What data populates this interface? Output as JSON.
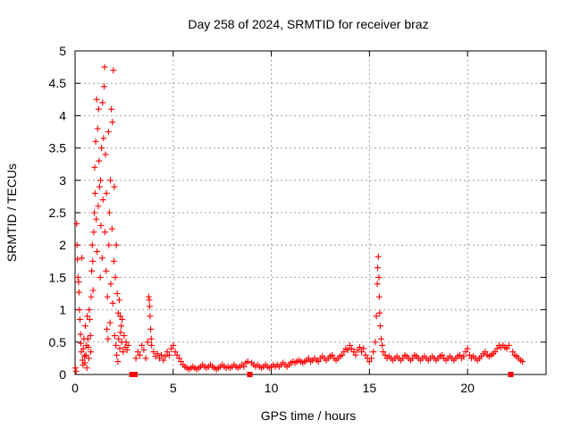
{
  "chart_data": {
    "type": "scatter",
    "title": "Day 258 of 2024, SRMTID for receiver braz",
    "xlabel": "GPS time / hours",
    "ylabel": "SRMTID / TECUs",
    "xlim": [
      0,
      24
    ],
    "ylim": [
      0,
      5
    ],
    "xticks": [
      0,
      5,
      10,
      15,
      20
    ],
    "xtick_labels": [
      "0",
      "5",
      "10",
      "15",
      "20"
    ],
    "yticks": [
      0,
      0.5,
      1,
      1.5,
      2,
      2.5,
      3,
      3.5,
      4,
      4.5,
      5
    ],
    "ytick_labels": [
      "0",
      "0.5",
      "1",
      "1.5",
      "2",
      "2.5",
      "3",
      "3.5",
      "4",
      "4.5",
      "5"
    ],
    "grid": true,
    "marker": "+",
    "color": "#ff0000",
    "series": [
      {
        "name": "SRMTID",
        "points": [
          [
            0.02,
            0.1
          ],
          [
            0.05,
            0.05
          ],
          [
            0.08,
            2.33
          ],
          [
            0.1,
            2.0
          ],
          [
            0.12,
            1.78
          ],
          [
            0.15,
            1.5
          ],
          [
            0.18,
            1.43
          ],
          [
            0.2,
            1.27
          ],
          [
            0.22,
            1.0
          ],
          [
            0.25,
            0.85
          ],
          [
            0.28,
            0.62
          ],
          [
            0.3,
            0.48
          ],
          [
            0.32,
            0.35
          ],
          [
            0.35,
            1.8
          ],
          [
            0.38,
            0.22
          ],
          [
            0.4,
            0.15
          ],
          [
            0.42,
            0.4
          ],
          [
            0.45,
            0.55
          ],
          [
            0.48,
            0.28
          ],
          [
            0.5,
            0.18
          ],
          [
            0.52,
            0.75
          ],
          [
            0.55,
            0.3
          ],
          [
            0.58,
            0.45
          ],
          [
            0.6,
            0.1
          ],
          [
            0.62,
            0.9
          ],
          [
            0.65,
            0.55
          ],
          [
            0.68,
            0.42
          ],
          [
            0.7,
            0.25
          ],
          [
            0.72,
            1.0
          ],
          [
            0.75,
            0.85
          ],
          [
            0.78,
            0.6
          ],
          [
            0.8,
            0.35
          ],
          [
            0.82,
            1.2
          ],
          [
            0.85,
            1.6
          ],
          [
            0.88,
            2.0
          ],
          [
            0.9,
            1.75
          ],
          [
            0.92,
            1.3
          ],
          [
            0.95,
            2.2
          ],
          [
            0.98,
            2.5
          ],
          [
            1.0,
            3.2
          ],
          [
            1.02,
            2.8
          ],
          [
            1.05,
            3.6
          ],
          [
            1.08,
            2.4
          ],
          [
            1.1,
            4.25
          ],
          [
            1.12,
            1.9
          ],
          [
            1.15,
            3.8
          ],
          [
            1.18,
            2.6
          ],
          [
            1.2,
            4.1
          ],
          [
            1.22,
            3.3
          ],
          [
            1.25,
            2.9
          ],
          [
            1.28,
            1.5
          ],
          [
            1.3,
            3.0
          ],
          [
            1.32,
            2.3
          ],
          [
            1.35,
            3.5
          ],
          [
            1.38,
            1.8
          ],
          [
            1.4,
            4.2
          ],
          [
            1.42,
            2.7
          ],
          [
            1.45,
            3.65
          ],
          [
            1.48,
            4.45
          ],
          [
            1.5,
            4.75
          ],
          [
            1.52,
            2.2
          ],
          [
            1.55,
            3.4
          ],
          [
            1.58,
            1.6
          ],
          [
            1.6,
            2.8
          ],
          [
            1.62,
            0.7
          ],
          [
            1.65,
            1.2
          ],
          [
            1.68,
            0.55
          ],
          [
            1.7,
            3.75
          ],
          [
            1.72,
            2.0
          ],
          [
            1.75,
            2.5
          ],
          [
            1.78,
            0.8
          ],
          [
            1.8,
            3.0
          ],
          [
            1.82,
            1.4
          ],
          [
            1.85,
            4.1
          ],
          [
            1.88,
            2.25
          ],
          [
            1.9,
            3.9
          ],
          [
            1.92,
            1.1
          ],
          [
            1.95,
            4.7
          ],
          [
            1.98,
            1.75
          ],
          [
            2.0,
            2.9
          ],
          [
            2.02,
            0.6
          ],
          [
            2.05,
            1.5
          ],
          [
            2.08,
            0.45
          ],
          [
            2.1,
            2.0
          ],
          [
            2.12,
            0.3
          ],
          [
            2.15,
            1.25
          ],
          [
            2.18,
            0.2
          ],
          [
            2.2,
            0.95
          ],
          [
            2.22,
            0.55
          ],
          [
            2.25,
            1.15
          ],
          [
            2.28,
            0.4
          ],
          [
            2.3,
            0.9
          ],
          [
            2.32,
            0.65
          ],
          [
            2.35,
            0.75
          ],
          [
            2.38,
            0.5
          ],
          [
            2.4,
            0.85
          ],
          [
            2.45,
            0.35
          ],
          [
            2.5,
            0.6
          ],
          [
            2.55,
            0.42
          ],
          [
            2.6,
            0.5
          ],
          [
            2.65,
            0.38
          ],
          [
            2.7,
            0.45
          ],
          [
            2.9,
            0.0
          ],
          [
            3.05,
            0.0
          ],
          [
            3.1,
            0.25
          ],
          [
            3.2,
            0.35
          ],
          [
            3.3,
            0.3
          ],
          [
            3.4,
            0.45
          ],
          [
            3.5,
            0.38
          ],
          [
            3.6,
            0.25
          ],
          [
            3.7,
            0.5
          ],
          [
            3.75,
            1.2
          ],
          [
            3.78,
            1.15
          ],
          [
            3.8,
            1.05
          ],
          [
            3.82,
            0.9
          ],
          [
            3.85,
            0.7
          ],
          [
            3.88,
            0.55
          ],
          [
            3.9,
            0.45
          ],
          [
            4.0,
            0.35
          ],
          [
            4.1,
            0.28
          ],
          [
            4.2,
            0.32
          ],
          [
            4.3,
            0.25
          ],
          [
            4.4,
            0.3
          ],
          [
            4.5,
            0.22
          ],
          [
            4.6,
            0.28
          ],
          [
            4.7,
            0.35
          ],
          [
            4.8,
            0.3
          ],
          [
            4.9,
            0.4
          ],
          [
            5.0,
            0.45
          ],
          [
            5.1,
            0.35
          ],
          [
            5.2,
            0.3
          ],
          [
            5.3,
            0.25
          ],
          [
            5.4,
            0.2
          ],
          [
            5.5,
            0.15
          ],
          [
            5.6,
            0.12
          ],
          [
            5.7,
            0.1
          ],
          [
            5.8,
            0.08
          ],
          [
            5.9,
            0.1
          ],
          [
            6.0,
            0.12
          ],
          [
            6.1,
            0.1
          ],
          [
            6.2,
            0.08
          ],
          [
            6.3,
            0.1
          ],
          [
            6.4,
            0.12
          ],
          [
            6.5,
            0.15
          ],
          [
            6.6,
            0.12
          ],
          [
            6.7,
            0.1
          ],
          [
            6.8,
            0.12
          ],
          [
            6.9,
            0.15
          ],
          [
            7.0,
            0.12
          ],
          [
            7.1,
            0.1
          ],
          [
            7.2,
            0.08
          ],
          [
            7.3,
            0.1
          ],
          [
            7.4,
            0.12
          ],
          [
            7.5,
            0.15
          ],
          [
            7.6,
            0.12
          ],
          [
            7.7,
            0.1
          ],
          [
            7.8,
            0.12
          ],
          [
            7.9,
            0.1
          ],
          [
            8.0,
            0.12
          ],
          [
            8.1,
            0.15
          ],
          [
            8.2,
            0.12
          ],
          [
            8.3,
            0.1
          ],
          [
            8.4,
            0.12
          ],
          [
            8.5,
            0.15
          ],
          [
            8.6,
            0.12
          ],
          [
            8.7,
            0.18
          ],
          [
            8.8,
            0.2
          ],
          [
            8.9,
            0.0
          ],
          [
            9.0,
            0.18
          ],
          [
            9.1,
            0.15
          ],
          [
            9.2,
            0.12
          ],
          [
            9.3,
            0.15
          ],
          [
            9.4,
            0.12
          ],
          [
            9.5,
            0.1
          ],
          [
            9.6,
            0.12
          ],
          [
            9.7,
            0.15
          ],
          [
            9.8,
            0.12
          ],
          [
            9.9,
            0.1
          ],
          [
            10.0,
            0.12
          ],
          [
            10.1,
            0.15
          ],
          [
            10.2,
            0.12
          ],
          [
            10.3,
            0.15
          ],
          [
            10.4,
            0.12
          ],
          [
            10.5,
            0.15
          ],
          [
            10.6,
            0.18
          ],
          [
            10.7,
            0.15
          ],
          [
            10.8,
            0.12
          ],
          [
            10.9,
            0.15
          ],
          [
            11.0,
            0.18
          ],
          [
            11.1,
            0.2
          ],
          [
            11.2,
            0.18
          ],
          [
            11.3,
            0.2
          ],
          [
            11.4,
            0.22
          ],
          [
            11.5,
            0.2
          ],
          [
            11.6,
            0.18
          ],
          [
            11.7,
            0.2
          ],
          [
            11.8,
            0.22
          ],
          [
            11.9,
            0.25
          ],
          [
            12.0,
            0.2
          ],
          [
            12.1,
            0.22
          ],
          [
            12.2,
            0.25
          ],
          [
            12.3,
            0.22
          ],
          [
            12.4,
            0.2
          ],
          [
            12.5,
            0.25
          ],
          [
            12.6,
            0.28
          ],
          [
            12.7,
            0.25
          ],
          [
            12.8,
            0.22
          ],
          [
            12.9,
            0.25
          ],
          [
            13.0,
            0.28
          ],
          [
            13.1,
            0.3
          ],
          [
            13.2,
            0.25
          ],
          [
            13.3,
            0.22
          ],
          [
            13.4,
            0.25
          ],
          [
            13.5,
            0.28
          ],
          [
            13.6,
            0.3
          ],
          [
            13.7,
            0.35
          ],
          [
            13.8,
            0.4
          ],
          [
            13.9,
            0.38
          ],
          [
            14.0,
            0.45
          ],
          [
            14.1,
            0.4
          ],
          [
            14.2,
            0.35
          ],
          [
            14.3,
            0.3
          ],
          [
            14.4,
            0.38
          ],
          [
            14.5,
            0.42
          ],
          [
            14.6,
            0.35
          ],
          [
            14.7,
            0.4
          ],
          [
            14.8,
            0.3
          ],
          [
            14.9,
            0.25
          ],
          [
            15.0,
            0.2
          ],
          [
            15.1,
            0.25
          ],
          [
            15.2,
            0.35
          ],
          [
            15.3,
            0.5
          ],
          [
            15.35,
            0.9
          ],
          [
            15.4,
            1.4
          ],
          [
            15.42,
            1.65
          ],
          [
            15.45,
            1.82
          ],
          [
            15.48,
            1.5
          ],
          [
            15.5,
            1.2
          ],
          [
            15.52,
            0.95
          ],
          [
            15.55,
            0.75
          ],
          [
            15.6,
            0.55
          ],
          [
            15.65,
            0.45
          ],
          [
            15.7,
            0.35
          ],
          [
            15.8,
            0.3
          ],
          [
            15.9,
            0.25
          ],
          [
            16.0,
            0.28
          ],
          [
            16.1,
            0.25
          ],
          [
            16.2,
            0.22
          ],
          [
            16.3,
            0.25
          ],
          [
            16.4,
            0.28
          ],
          [
            16.5,
            0.25
          ],
          [
            16.6,
            0.22
          ],
          [
            16.7,
            0.25
          ],
          [
            16.8,
            0.3
          ],
          [
            16.9,
            0.28
          ],
          [
            17.0,
            0.25
          ],
          [
            17.1,
            0.22
          ],
          [
            17.2,
            0.25
          ],
          [
            17.3,
            0.3
          ],
          [
            17.4,
            0.28
          ],
          [
            17.5,
            0.25
          ],
          [
            17.6,
            0.22
          ],
          [
            17.7,
            0.25
          ],
          [
            17.8,
            0.28
          ],
          [
            17.9,
            0.25
          ],
          [
            18.0,
            0.22
          ],
          [
            18.1,
            0.25
          ],
          [
            18.2,
            0.28
          ],
          [
            18.3,
            0.25
          ],
          [
            18.4,
            0.22
          ],
          [
            18.5,
            0.25
          ],
          [
            18.6,
            0.28
          ],
          [
            18.7,
            0.3
          ],
          [
            18.8,
            0.25
          ],
          [
            18.9,
            0.22
          ],
          [
            19.0,
            0.25
          ],
          [
            19.1,
            0.28
          ],
          [
            19.2,
            0.25
          ],
          [
            19.3,
            0.22
          ],
          [
            19.4,
            0.25
          ],
          [
            19.5,
            0.28
          ],
          [
            19.6,
            0.3
          ],
          [
            19.7,
            0.25
          ],
          [
            19.8,
            0.28
          ],
          [
            19.9,
            0.35
          ],
          [
            20.0,
            0.4
          ],
          [
            20.1,
            0.3
          ],
          [
            20.2,
            0.25
          ],
          [
            20.3,
            0.28
          ],
          [
            20.4,
            0.25
          ],
          [
            20.5,
            0.22
          ],
          [
            20.6,
            0.25
          ],
          [
            20.7,
            0.28
          ],
          [
            20.8,
            0.32
          ],
          [
            20.9,
            0.35
          ],
          [
            21.0,
            0.3
          ],
          [
            21.1,
            0.28
          ],
          [
            21.2,
            0.3
          ],
          [
            21.3,
            0.32
          ],
          [
            21.4,
            0.35
          ],
          [
            21.5,
            0.4
          ],
          [
            21.6,
            0.45
          ],
          [
            21.7,
            0.42
          ],
          [
            21.8,
            0.45
          ],
          [
            21.9,
            0.42
          ],
          [
            22.0,
            0.4
          ],
          [
            22.1,
            0.45
          ],
          [
            22.2,
            0.0
          ],
          [
            22.3,
            0.35
          ],
          [
            22.4,
            0.3
          ],
          [
            22.5,
            0.28
          ],
          [
            22.6,
            0.25
          ],
          [
            22.7,
            0.22
          ],
          [
            22.8,
            0.2
          ]
        ]
      }
    ]
  }
}
